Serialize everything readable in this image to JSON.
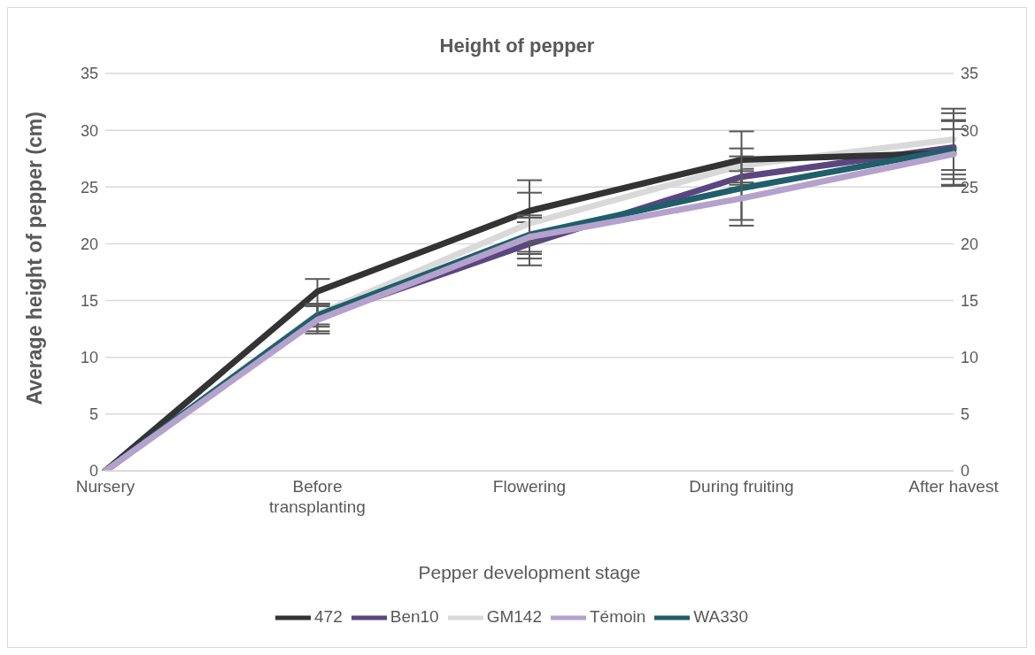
{
  "chart_data": {
    "type": "line",
    "title": "Height of pepper",
    "xlabel": "Pepper development stage",
    "ylabel": "Average height of pepper (cm)",
    "categories": [
      "Nursery",
      "Before transplanting",
      "Flowering",
      "During fruiting",
      "After havest"
    ],
    "series": [
      {
        "name": "Ben10",
        "color": "#5b4680",
        "values": [
          0,
          13.5,
          20.0,
          25.9,
          28.5
        ],
        "errors": [
          null,
          1.2,
          1.9,
          0.7,
          2.4
        ]
      },
      {
        "name": "GM142",
        "color": "#d9d9d9",
        "values": [
          0,
          13.8,
          21.8,
          26.9,
          29.2
        ],
        "errors": [
          null,
          0.9,
          2.7,
          1.5,
          2.7
        ]
      },
      {
        "name": "472",
        "color": "#333333",
        "values": [
          0,
          15.8,
          22.9,
          27.4,
          28.0
        ],
        "errors": [
          null,
          1.1,
          2.7,
          2.5,
          2.8
        ]
      },
      {
        "name": "WA330",
        "color": "#1f5f6b",
        "values": [
          0,
          13.7,
          20.8,
          24.9,
          28.3
        ],
        "errors": [
          null,
          1.0,
          1.5,
          2.8,
          3.2
        ]
      },
      {
        "name": "Témoin",
        "color": "#b4a2cc",
        "values": [
          0,
          13.3,
          20.6,
          24.0,
          27.9
        ],
        "errors": [
          null,
          1.2,
          1.9,
          2.4,
          2.2
        ]
      }
    ],
    "ylim": [
      0,
      35
    ],
    "yticks": [
      0,
      5,
      10,
      15,
      20,
      25,
      30,
      35
    ],
    "y2lim": [
      0,
      35
    ],
    "y2ticks": [
      0,
      5,
      10,
      15,
      20,
      25,
      30,
      35
    ],
    "grid": "y",
    "legend": "bottom",
    "marker": "none",
    "line_style": "solid"
  }
}
